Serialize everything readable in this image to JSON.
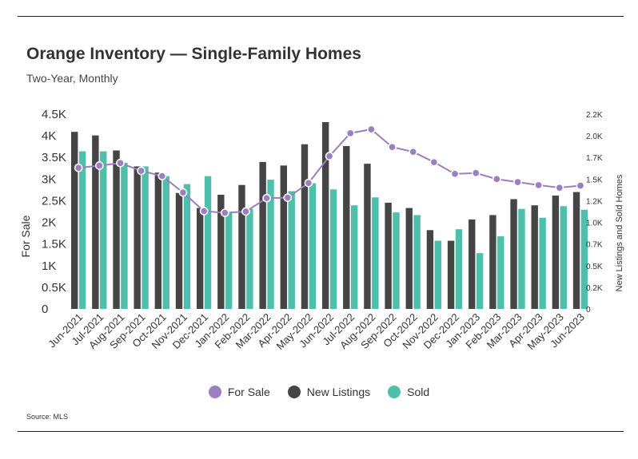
{
  "header": {
    "title": "Orange Inventory — Single-Family Homes",
    "subtitle": "Two-Year, Monthly"
  },
  "footer": {
    "source": "Source: MLS"
  },
  "colors": {
    "for_sale": "#9b7fc0",
    "new_listings": "#454545",
    "sold": "#4dbfaa"
  },
  "chart_data": {
    "type": "bar",
    "categories": [
      "Jun-2021",
      "Jul-2021",
      "Aug-2021",
      "Sep-2021",
      "Oct-2021",
      "Nov-2021",
      "Dec-2021",
      "Jan-2022",
      "Feb-2022",
      "Mar-2022",
      "Apr-2022",
      "May-2022",
      "Jun-2022",
      "Jul-2022",
      "Aug-2022",
      "Sep-2022",
      "Oct-2022",
      "Nov-2022",
      "Dec-2022",
      "Jan-2023",
      "Feb-2023",
      "Mar-2023",
      "Apr-2023",
      "May-2023",
      "Jun-2023"
    ],
    "ylabel_left": "For Sale",
    "ylabel_right": "New Listings and Sold Homes",
    "y_left": {
      "ylim": [
        0,
        4500
      ],
      "ticks": [
        "0",
        "0.5K",
        "1K",
        "1.5K",
        "2K",
        "2.5K",
        "3K",
        "3.5K",
        "4K",
        "4.5K"
      ]
    },
    "y_right": {
      "ylim": [
        0,
        2200
      ],
      "ticks": [
        "0",
        "0.2K",
        "0.5K",
        "0.7K",
        "1.0K",
        "1.2K",
        "1.5K",
        "1.7K",
        "2.0K",
        "2.2K"
      ]
    },
    "grid": false,
    "legend_position": "bottom-center",
    "series": [
      {
        "name": "For Sale",
        "type": "line",
        "axis": "left",
        "values": [
          3260,
          3310,
          3370,
          3190,
          3070,
          2690,
          2260,
          2220,
          2250,
          2560,
          2570,
          2910,
          3530,
          4060,
          4150,
          3740,
          3630,
          3390,
          3120,
          3140,
          3000,
          2930,
          2860,
          2800,
          2850
        ]
      },
      {
        "name": "New Listings",
        "type": "bar",
        "axis": "right",
        "values": [
          2000,
          1960,
          1790,
          1610,
          1540,
          1310,
          1140,
          1290,
          1400,
          1660,
          1620,
          1860,
          2110,
          1840,
          1640,
          1200,
          1140,
          890,
          770,
          1010,
          1060,
          1240,
          1170,
          1280,
          1320
        ]
      },
      {
        "name": "Sold",
        "type": "bar",
        "axis": "right",
        "values": [
          1780,
          1780,
          1650,
          1610,
          1500,
          1410,
          1500,
          1090,
          1130,
          1460,
          1330,
          1420,
          1350,
          1170,
          1260,
          1090,
          1060,
          770,
          900,
          630,
          820,
          1130,
          1030,
          1160,
          1120
        ]
      }
    ]
  }
}
